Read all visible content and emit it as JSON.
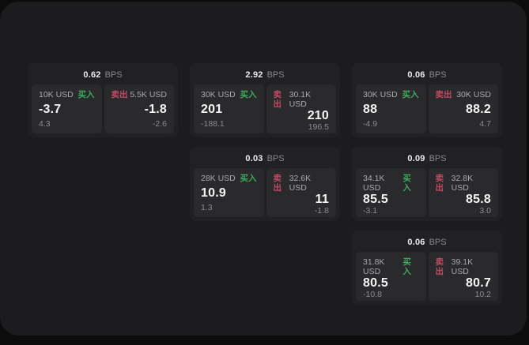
{
  "labels": {
    "bps_unit": "BPS",
    "buy": "买入",
    "sell": "卖出"
  },
  "colors": {
    "buy_green": "#3fa95c",
    "sell_red": "#c24a62",
    "surface": "#1c1c1e",
    "card": "#212124",
    "panel": "#2a2a2d"
  },
  "cards": [
    {
      "bps": "0.62",
      "col": 1,
      "row": 1,
      "buy": {
        "size": "10K USD",
        "price": "-3.7",
        "delta": "4.3"
      },
      "sell": {
        "size": "5.5K USD",
        "price": "-1.8",
        "delta": "-2.6"
      }
    },
    {
      "bps": "2.92",
      "col": 2,
      "row": 1,
      "buy": {
        "size": "30K USD",
        "price": "201",
        "delta": "-188.1"
      },
      "sell": {
        "size": "30.1K USD",
        "price": "210",
        "delta": "196.5"
      }
    },
    {
      "bps": "0.06",
      "col": 3,
      "row": 1,
      "buy": {
        "size": "30K USD",
        "price": "88",
        "delta": "-4.9"
      },
      "sell": {
        "size": "30K USD",
        "price": "88.2",
        "delta": "4.7"
      }
    },
    {
      "bps": "0.03",
      "col": 2,
      "row": 2,
      "buy": {
        "size": "28K USD",
        "price": "10.9",
        "delta": "1.3"
      },
      "sell": {
        "size": "32.6K USD",
        "price": "11",
        "delta": "-1.8"
      }
    },
    {
      "bps": "0.09",
      "col": 3,
      "row": 2,
      "buy": {
        "size": "34.1K USD",
        "price": "85.5",
        "delta": "-3.1"
      },
      "sell": {
        "size": "32.8K USD",
        "price": "85.8",
        "delta": "3.0"
      }
    },
    {
      "bps": "0.06",
      "col": 3,
      "row": 3,
      "buy": {
        "size": "31.8K USD",
        "price": "80.5",
        "delta": "-10.8"
      },
      "sell": {
        "size": "39.1K USD",
        "price": "80.7",
        "delta": "10.2"
      }
    }
  ]
}
